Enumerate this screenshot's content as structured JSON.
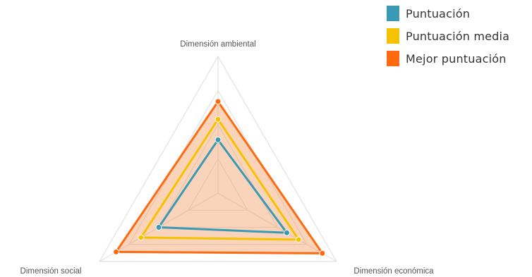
{
  "chart_data": {
    "type": "radar",
    "axes": [
      "Dimensión ambiental",
      "Dimensión económica",
      "Dimensión social"
    ],
    "rmax": 1,
    "grid_levels": [
      0.25,
      0.5,
      0.75,
      1
    ],
    "grid": true,
    "legend_position": "top-right",
    "series": [
      {
        "name": "Puntuación",
        "values": [
          0.39,
          0.58,
          0.5
        ],
        "color": "#3a9ab5"
      },
      {
        "name": "Puntuación media",
        "values": [
          0.54,
          0.68,
          0.65
        ],
        "color": "#f5c200"
      },
      {
        "name": "Mejor puntuación",
        "values": [
          0.67,
          0.88,
          0.86
        ],
        "color": "#ff6a10"
      }
    ],
    "fill_color": "#f5a066"
  }
}
